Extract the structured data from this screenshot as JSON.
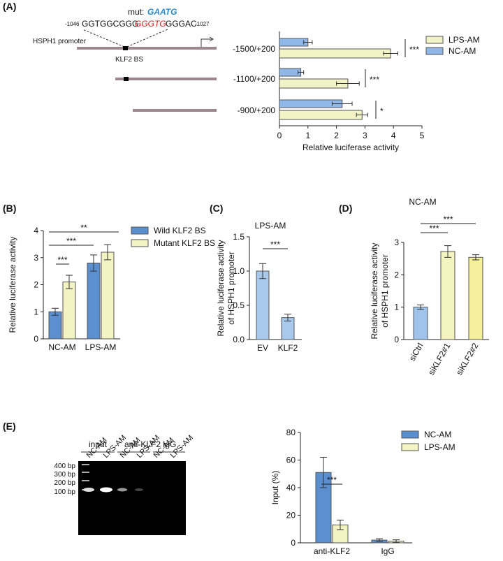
{
  "panel_labels": [
    "(A)",
    "(B)",
    "(C)",
    "(D)",
    "(E)"
  ],
  "diagram": {
    "mut_label": "mut:",
    "mut_seq": "GAATG",
    "start": "-1046",
    "seq_left": "GGTGGCGGG",
    "seq_site": "GGGTG",
    "seq_right": "GGGAC",
    "end": "-1027",
    "promoter": "HSPH1 promoter",
    "site": "KLF2 BS"
  },
  "gel": {
    "groups": [
      "input",
      "anti-KLF2",
      "IgG"
    ],
    "lanes": [
      "NC-AM",
      "LPS-AM",
      "NC-AM",
      "LPS-AM",
      "NC-AM",
      "LPS-AM"
    ],
    "ladder": [
      "400 bp",
      "300 bp",
      "200 bp",
      "100 bp"
    ]
  },
  "chart_data": [
    {
      "type": "hbar",
      "categories": [
        "-1500/+200",
        "-1100/+200",
        "-900/+200"
      ],
      "series": [
        {
          "name": "LPS-AM",
          "color": "#f3f3c8",
          "values": [
            3.9,
            2.4,
            2.9
          ],
          "errors": [
            0.25,
            0.4,
            0.2
          ]
        },
        {
          "name": "NC-AM",
          "color": "#8fb8e8",
          "values": [
            1.0,
            0.75,
            2.2
          ],
          "errors": [
            0.15,
            0.1,
            0.35
          ]
        }
      ],
      "xlim": [
        0,
        5
      ],
      "xticks": [
        0,
        1,
        2,
        3,
        4,
        5
      ],
      "x_label": "Relative luciferase activity",
      "significance": [
        "***",
        "***",
        "*"
      ]
    },
    {
      "type": "bar",
      "categories": [
        "NC-AM",
        "LPS-AM"
      ],
      "series": [
        {
          "name": "Wild KLF2 BS",
          "color": "#5b8fd0",
          "values": [
            1.0,
            2.8
          ],
          "errors": [
            0.13,
            0.3
          ]
        },
        {
          "name": "Mutant KLF2 BS",
          "color": "#f3f3c4",
          "values": [
            2.1,
            3.2
          ],
          "errors": [
            0.25,
            0.28
          ]
        }
      ],
      "ylim": [
        0,
        4
      ],
      "yticks": [
        0,
        1,
        2,
        3,
        4
      ],
      "y_label": [
        "Relative luciferase activity"
      ],
      "significance": [
        "***",
        "***",
        "**"
      ]
    },
    {
      "type": "bar",
      "title": "LPS-AM",
      "categories": [
        "EV",
        "KLF2"
      ],
      "values": [
        1.0,
        0.32
      ],
      "errors": [
        0.11,
        0.05
      ],
      "colors": [
        "#a8c8ec",
        "#a8c8ec"
      ],
      "ylim": [
        0,
        1.5
      ],
      "yticks": [
        {
          "value": 0,
          "label": "0.0"
        },
        {
          "value": 0.5,
          "label": "0.5"
        },
        {
          "value": 1,
          "label": "1.0"
        },
        {
          "value": 1.5,
          "label": "1.5"
        }
      ],
      "y_label": [
        "Relative luciferase activity",
        "of HSPH1 promoter"
      ],
      "significance": [
        "***"
      ]
    },
    {
      "type": "bar",
      "title": "NC-AM",
      "categories": [
        "siCtrl",
        "siKLF2#1",
        "siKLF2#2"
      ],
      "values": [
        1.0,
        2.72,
        2.54
      ],
      "errors": [
        0.07,
        0.18,
        0.08
      ],
      "colors": [
        "#9fc3ea",
        "#f4f4c0",
        "#f4ef9a"
      ],
      "ylim": [
        0,
        3
      ],
      "yticks": [
        0,
        1,
        2,
        3
      ],
      "y_label": [
        "Relative luciferase activity",
        "of HSPH1 promoter"
      ],
      "significance": [
        "***",
        "***"
      ]
    },
    {
      "type": "bar",
      "categories": [
        "anti-KLF2",
        "IgG"
      ],
      "series": [
        {
          "name": "NC-AM",
          "color": "#5b8fd0",
          "values": [
            51,
            2
          ],
          "errors": [
            11,
            1
          ]
        },
        {
          "name": "LPS-AM",
          "color": "#f3f3c4",
          "values": [
            13,
            1.2
          ],
          "errors": [
            3.5,
            1
          ]
        }
      ],
      "ylim": [
        0,
        80
      ],
      "yticks": [
        0,
        20,
        40,
        60,
        80
      ],
      "y_label": [
        "Input (%)"
      ],
      "significance": [
        "***"
      ]
    }
  ]
}
